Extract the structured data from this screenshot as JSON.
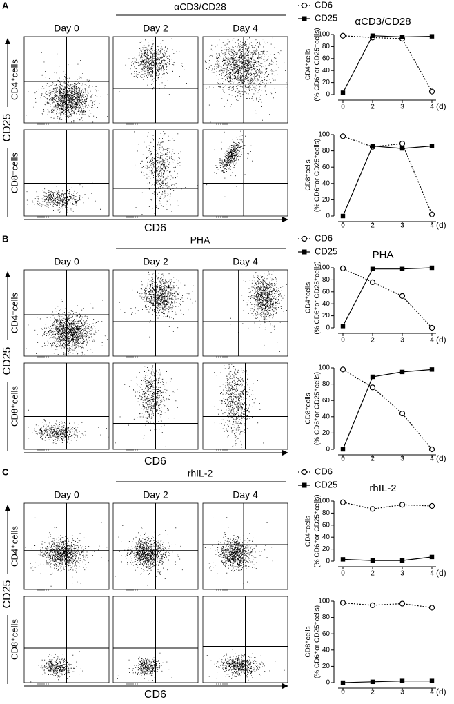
{
  "panels": [
    {
      "label": "A",
      "treatment": "αCD3/CD28",
      "days": [
        "Day 0",
        "Day 2",
        "Day 4"
      ],
      "row_labels": [
        "CD4⁺cells",
        "CD8⁺cells"
      ],
      "y_axis_label": "CD25",
      "x_axis_label": "CD6"
    },
    {
      "label": "B",
      "treatment": "PHA",
      "days": [
        "Day 0",
        "Day 2",
        "Day 4"
      ],
      "row_labels": [
        "CD4⁺cells",
        "CD8⁺cells"
      ],
      "y_axis_label": "CD25",
      "x_axis_label": "CD6"
    },
    {
      "label": "C",
      "treatment": "rhIL-2",
      "days": [
        "Day 0",
        "Day 2",
        "Day 4"
      ],
      "row_labels": [
        "CD4⁺cells",
        "CD8⁺cells"
      ],
      "y_axis_label": "CD25",
      "x_axis_label": "CD6"
    }
  ],
  "chart_data": [
    {
      "type": "line",
      "title": "αCD3/CD28",
      "y_label": [
        "CD4⁺cells",
        "(% CD6⁺or CD25⁺cells)"
      ],
      "categories": [
        "0",
        "2",
        "3",
        "4"
      ],
      "x_unit": "(d)",
      "ylim": [
        0,
        100
      ],
      "yticks": [
        0,
        20,
        40,
        60,
        80,
        100
      ],
      "series": [
        {
          "name": "CD6",
          "color": "#000000",
          "marker": "open-circle",
          "dashed": true,
          "values": [
            98,
            95,
            93,
            5
          ]
        },
        {
          "name": "CD25",
          "color": "#000000",
          "marker": "filled-square",
          "dashed": false,
          "values": [
            3,
            98,
            96,
            97
          ]
        }
      ]
    },
    {
      "type": "line",
      "y_label": [
        "CD8⁺cells",
        "(% CD6⁺or CD25⁺cells)"
      ],
      "categories": [
        "0",
        "2",
        "3",
        "4"
      ],
      "x_unit": "(d)",
      "ylim": [
        0,
        100
      ],
      "yticks": [
        0,
        20,
        40,
        60,
        80,
        100
      ],
      "series": [
        {
          "color": "#000000",
          "marker": "open-circle",
          "dashed": true,
          "values": [
            98,
            85,
            89,
            2
          ]
        },
        {
          "color": "#000000",
          "marker": "filled-square",
          "dashed": false,
          "values": [
            0,
            86,
            83,
            86
          ]
        }
      ]
    },
    {
      "type": "line",
      "title": "PHA",
      "y_label": [
        "CD4⁺cells",
        "(% CD6⁺or CD25⁺cells)"
      ],
      "categories": [
        "0",
        "2",
        "3",
        "4"
      ],
      "x_unit": "(d)",
      "ylim": [
        0,
        100
      ],
      "yticks": [
        0,
        20,
        40,
        60,
        80,
        100
      ],
      "series": [
        {
          "name": "CD6",
          "color": "#000000",
          "marker": "open-circle",
          "dashed": true,
          "values": [
            99,
            76,
            53,
            0
          ]
        },
        {
          "name": "CD25",
          "color": "#000000",
          "marker": "filled-square",
          "dashed": false,
          "values": [
            3,
            98,
            98,
            100
          ]
        }
      ]
    },
    {
      "type": "line",
      "y_label": [
        "CD8⁺cells",
        "(% CD6⁺or CD25⁺cells)"
      ],
      "categories": [
        "0",
        "2",
        "3",
        "4"
      ],
      "x_unit": "(d)",
      "ylim": [
        0,
        100
      ],
      "yticks": [
        0,
        20,
        40,
        60,
        80,
        100
      ],
      "series": [
        {
          "color": "#000000",
          "marker": "open-circle",
          "dashed": true,
          "values": [
            98,
            76,
            44,
            0
          ]
        },
        {
          "color": "#000000",
          "marker": "filled-square",
          "dashed": false,
          "values": [
            0,
            89,
            95,
            98
          ]
        }
      ]
    },
    {
      "type": "line",
      "title": "rhIL-2",
      "y_label": [
        "CD4⁺cells",
        "(% CD6⁺or CD25⁺cells)"
      ],
      "categories": [
        "0",
        "2",
        "3",
        "4"
      ],
      "x_unit": "(d)",
      "ylim": [
        0,
        100
      ],
      "yticks": [
        0,
        20,
        40,
        60,
        80,
        100
      ],
      "series": [
        {
          "name": "CD6",
          "color": "#000000",
          "marker": "open-circle",
          "dashed": true,
          "values": [
            98,
            87,
            94,
            92
          ]
        },
        {
          "name": "CD25",
          "color": "#000000",
          "marker": "filled-square",
          "dashed": false,
          "values": [
            3,
            1,
            1,
            7
          ]
        }
      ]
    },
    {
      "type": "line",
      "y_label": [
        "CD8⁺cells",
        "(% CD6⁺or CD25⁺cells)"
      ],
      "categories": [
        "0",
        "2",
        "3",
        "4"
      ],
      "x_unit": "(d)",
      "ylim": [
        0,
        100
      ],
      "yticks": [
        0,
        20,
        40,
        60,
        80,
        100
      ],
      "series": [
        {
          "color": "#000000",
          "marker": "open-circle",
          "dashed": true,
          "values": [
            98,
            95,
            97,
            92
          ]
        },
        {
          "color": "#000000",
          "marker": "filled-square",
          "dashed": false,
          "values": [
            0,
            1,
            2,
            2
          ]
        }
      ]
    }
  ]
}
